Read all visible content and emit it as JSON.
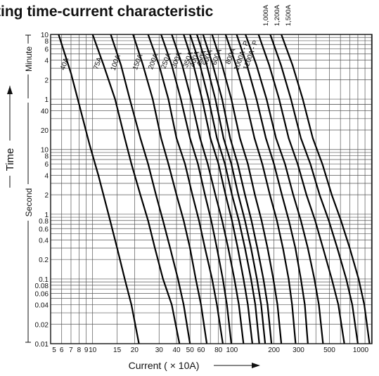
{
  "title": "ting time-current characteristic",
  "chart_data": {
    "type": "line",
    "title": "ting time-current characteristic",
    "xlabel": "Current ( × 10A)",
    "ylabel": "Time",
    "x_scale": "log",
    "y_scale": "log",
    "xlim": [
      5,
      1000
    ],
    "x_ticks": [
      "5",
      "6",
      "7",
      "8",
      "9",
      "10",
      "15",
      "20",
      "30",
      "40",
      "50",
      "60",
      "80",
      "100",
      "200",
      "300",
      "500",
      "1000"
    ],
    "x_tick_values": [
      5,
      6,
      7,
      8,
      9,
      10,
      15,
      20,
      30,
      40,
      50,
      60,
      80,
      100,
      200,
      300,
      500,
      1000
    ],
    "y_ticks_seconds": [
      "0.01",
      "0.02",
      "0.04",
      "0.06",
      "0.08",
      "0.1",
      "0.2",
      "0.4",
      "0.6",
      "0.8",
      "1",
      "2",
      "4",
      "6",
      "8",
      "10",
      "20",
      "40"
    ],
    "y_tick_seconds_values": [
      0.01,
      0.02,
      0.04,
      0.06,
      0.08,
      0.1,
      0.2,
      0.4,
      0.6,
      0.8,
      1,
      2,
      4,
      6,
      8,
      10,
      20,
      40
    ],
    "y_ticks_minutes": [
      "1",
      "2",
      "4",
      "6",
      "8",
      "10"
    ],
    "y_tick_minutes_values": [
      1,
      2,
      4,
      6,
      8,
      10
    ],
    "y_section_labels": [
      "Second",
      "Minute"
    ],
    "grid": true,
    "series": [
      {
        "name": "40A",
        "points": [
          [
            5.7,
            600
          ],
          [
            7,
            150
          ],
          [
            8,
            50
          ],
          [
            9.5,
            12
          ],
          [
            11,
            4
          ],
          [
            13,
            1
          ],
          [
            15,
            0.3
          ],
          [
            17,
            0.1
          ],
          [
            19,
            0.04
          ],
          [
            21.5,
            0.01
          ]
        ]
      },
      {
        "name": "75A",
        "points": [
          [
            10,
            600
          ],
          [
            12,
            200
          ],
          [
            14.5,
            60
          ],
          [
            17,
            15
          ],
          [
            19,
            6
          ],
          [
            22,
            2
          ],
          [
            25,
            0.8
          ],
          [
            28,
            0.3
          ],
          [
            32,
            0.1
          ],
          [
            37,
            0.04
          ],
          [
            42,
            0.01
          ]
        ]
      },
      {
        "name": "100A",
        "points": [
          [
            13.5,
            600
          ],
          [
            16,
            200
          ],
          [
            18.5,
            60
          ],
          [
            22,
            15
          ],
          [
            25,
            6
          ],
          [
            28.5,
            2
          ],
          [
            32,
            0.8
          ],
          [
            36,
            0.3
          ],
          [
            41,
            0.1
          ],
          [
            45,
            0.04
          ],
          [
            50,
            0.01
          ]
        ]
      },
      {
        "name": "150A",
        "points": [
          [
            19.5,
            600
          ],
          [
            23,
            200
          ],
          [
            27,
            60
          ],
          [
            31,
            15
          ],
          [
            35,
            6
          ],
          [
            40,
            2
          ],
          [
            45,
            0.8
          ],
          [
            50,
            0.3
          ],
          [
            55,
            0.1
          ],
          [
            60,
            0.04
          ],
          [
            66,
            0.01
          ]
        ]
      },
      {
        "name": "200A",
        "points": [
          [
            25,
            600
          ],
          [
            30,
            200
          ],
          [
            35,
            60
          ],
          [
            40,
            15
          ],
          [
            46,
            6
          ],
          [
            52,
            2
          ],
          [
            58,
            0.8
          ],
          [
            64,
            0.3
          ],
          [
            72,
            0.1
          ],
          [
            78,
            0.04
          ],
          [
            86,
            0.01
          ]
        ]
      },
      {
        "name": "250A",
        "points": [
          [
            31,
            600
          ],
          [
            37,
            200
          ],
          [
            43,
            60
          ],
          [
            50,
            15
          ],
          [
            57,
            6
          ],
          [
            64,
            2
          ],
          [
            71,
            0.8
          ],
          [
            78,
            0.3
          ],
          [
            86,
            0.1
          ],
          [
            92,
            0.04
          ],
          [
            99,
            0.01
          ]
        ]
      },
      {
        "name": "300A",
        "points": [
          [
            37,
            600
          ],
          [
            44,
            200
          ],
          [
            51,
            60
          ],
          [
            59,
            15
          ],
          [
            67,
            6
          ],
          [
            76,
            2
          ],
          [
            85,
            0.8
          ],
          [
            94,
            0.3
          ],
          [
            104,
            0.1
          ],
          [
            112,
            0.04
          ],
          [
            121,
            0.01
          ]
        ]
      },
      {
        "name": "350A",
        "points": [
          [
            45,
            600
          ],
          [
            53,
            200
          ],
          [
            61,
            60
          ],
          [
            70,
            15
          ],
          [
            80,
            6
          ],
          [
            90,
            2
          ],
          [
            100,
            0.8
          ],
          [
            110,
            0.3
          ],
          [
            121,
            0.1
          ],
          [
            130,
            0.04
          ],
          [
            140,
            0.01
          ]
        ]
      },
      {
        "name": "400A",
        "points": [
          [
            50,
            600
          ],
          [
            59,
            200
          ],
          [
            68,
            60
          ],
          [
            78,
            15
          ],
          [
            89,
            6
          ],
          [
            100,
            2
          ],
          [
            112,
            0.8
          ],
          [
            124,
            0.3
          ],
          [
            137,
            0.1
          ],
          [
            147,
            0.04
          ],
          [
            157,
            0.01
          ]
        ]
      },
      {
        "name": "450A",
        "points": [
          [
            56,
            600
          ],
          [
            66,
            200
          ],
          [
            76,
            60
          ],
          [
            87,
            15
          ],
          [
            99,
            6
          ],
          [
            111,
            2
          ],
          [
            124,
            0.8
          ],
          [
            137,
            0.3
          ],
          [
            151,
            0.1
          ],
          [
            162,
            0.04
          ],
          [
            173,
            0.01
          ]
        ]
      },
      {
        "name": "500A",
        "points": [
          [
            62,
            600
          ],
          [
            73,
            200
          ],
          [
            85,
            60
          ],
          [
            97,
            15
          ],
          [
            110,
            6
          ],
          [
            124,
            2
          ],
          [
            138,
            0.8
          ],
          [
            152,
            0.3
          ],
          [
            168,
            0.1
          ],
          [
            180,
            0.04
          ],
          [
            192,
            0.01
          ]
        ]
      },
      {
        "name": "600A",
        "points": [
          [
            72,
            600
          ],
          [
            85,
            200
          ],
          [
            99,
            60
          ],
          [
            114,
            15
          ],
          [
            130,
            6
          ],
          [
            146,
            2
          ],
          [
            163,
            0.8
          ],
          [
            180,
            0.3
          ],
          [
            198,
            0.1
          ],
          [
            212,
            0.04
          ],
          [
            226,
            0.01
          ]
        ]
      },
      {
        "name": "800A",
        "points": [
          [
            90,
            600
          ],
          [
            107,
            200
          ],
          [
            125,
            60
          ],
          [
            145,
            15
          ],
          [
            165,
            6
          ],
          [
            187,
            2
          ],
          [
            210,
            0.8
          ],
          [
            232,
            0.3
          ],
          [
            255,
            0.1
          ],
          [
            270,
            0.04
          ],
          [
            286,
            0.01
          ]
        ]
      },
      {
        "name": "1000A-P",
        "points": [
          [
            108,
            600
          ],
          [
            128,
            200
          ],
          [
            150,
            60
          ],
          [
            175,
            15
          ],
          [
            200,
            6
          ],
          [
            228,
            2
          ],
          [
            256,
            0.8
          ],
          [
            285,
            0.3
          ],
          [
            312,
            0.1
          ],
          [
            333,
            0.04
          ],
          [
            350,
            0.01
          ]
        ]
      },
      {
        "name": "1200A-P",
        "points": [
          [
            125,
            600
          ],
          [
            150,
            200
          ],
          [
            177,
            60
          ],
          [
            207,
            15
          ],
          [
            240,
            6
          ],
          [
            275,
            2
          ],
          [
            312,
            0.8
          ],
          [
            350,
            0.3
          ],
          [
            390,
            0.1
          ],
          [
            420,
            0.04
          ],
          [
            450,
            0.01
          ]
        ]
      },
      {
        "name": "1,000A",
        "points": [
          [
            155,
            600
          ],
          [
            185,
            200
          ],
          [
            218,
            60
          ],
          [
            255,
            15
          ],
          [
            296,
            6
          ],
          [
            342,
            2
          ],
          [
            395,
            0.8
          ],
          [
            450,
            0.3
          ],
          [
            520,
            0.1
          ],
          [
            580,
            0.04
          ],
          [
            640,
            0.01
          ]
        ]
      },
      {
        "name": "1,200A",
        "points": [
          [
            188,
            600
          ],
          [
            225,
            200
          ],
          [
            265,
            60
          ],
          [
            312,
            15
          ],
          [
            365,
            6
          ],
          [
            425,
            2
          ],
          [
            495,
            0.8
          ],
          [
            570,
            0.3
          ],
          [
            660,
            0.1
          ],
          [
            730,
            0.04
          ],
          [
            800,
            0.01
          ]
        ]
      },
      {
        "name": "1,500A",
        "points": [
          [
            226,
            600
          ],
          [
            272,
            200
          ],
          [
            322,
            60
          ],
          [
            380,
            15
          ],
          [
            445,
            6
          ],
          [
            520,
            2
          ],
          [
            605,
            0.8
          ],
          [
            700,
            0.3
          ],
          [
            810,
            0.1
          ],
          [
            890,
            0.04
          ],
          [
            970,
            0.01
          ]
        ]
      }
    ]
  }
}
